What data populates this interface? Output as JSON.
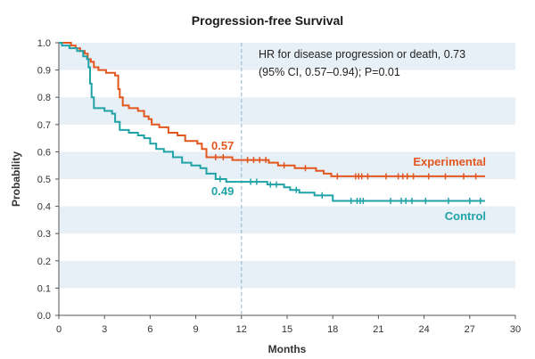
{
  "chart_data": {
    "type": "line",
    "title": "Progression-free Survival",
    "xlabel": "Months",
    "ylabel": "Probability",
    "xlim": [
      0,
      30
    ],
    "ylim": [
      0,
      1
    ],
    "x_ticks": [
      0,
      3,
      6,
      9,
      12,
      15,
      18,
      21,
      24,
      27,
      30
    ],
    "y_ticks": [
      "0.0",
      "0.1",
      "0.2",
      "0.3",
      "0.4",
      "0.5",
      "0.6",
      "0.7",
      "0.8",
      "0.9",
      "1.0"
    ],
    "reference_line_x": 12,
    "annotation": [
      "HR for disease progression or death, 0.73",
      "(95% CI, 0.57–0.94); P=0.01"
    ],
    "series": [
      {
        "name": "Experimental",
        "color": "#e2571f",
        "label_at_reference": "0.57",
        "points": [
          [
            0,
            1.0
          ],
          [
            0.8,
            0.99
          ],
          [
            1.1,
            0.98
          ],
          [
            1.4,
            0.97
          ],
          [
            1.7,
            0.96
          ],
          [
            1.9,
            0.94
          ],
          [
            2.1,
            0.93
          ],
          [
            2.3,
            0.91
          ],
          [
            2.6,
            0.9
          ],
          [
            3.1,
            0.89
          ],
          [
            3.7,
            0.88
          ],
          [
            3.9,
            0.83
          ],
          [
            4.0,
            0.8
          ],
          [
            4.2,
            0.77
          ],
          [
            4.6,
            0.76
          ],
          [
            5.2,
            0.75
          ],
          [
            5.6,
            0.73
          ],
          [
            5.9,
            0.72
          ],
          [
            6.1,
            0.7
          ],
          [
            6.6,
            0.69
          ],
          [
            7.2,
            0.67
          ],
          [
            7.8,
            0.66
          ],
          [
            8.3,
            0.64
          ],
          [
            9.1,
            0.63
          ],
          [
            9.4,
            0.61
          ],
          [
            9.7,
            0.58
          ],
          [
            11.4,
            0.57
          ],
          [
            13.8,
            0.56
          ],
          [
            14.4,
            0.55
          ],
          [
            15.5,
            0.54
          ],
          [
            16.9,
            0.53
          ],
          [
            17.4,
            0.52
          ],
          [
            17.9,
            0.51
          ],
          [
            28.0,
            0.51
          ]
        ],
        "censored": [
          10.3,
          10.8,
          12.4,
          12.8,
          13.2,
          13.6,
          14.8,
          16.2,
          18.3,
          19.5,
          19.7,
          19.9,
          20.3,
          21.5,
          22.3,
          22.6,
          22.9,
          23.3,
          24.3,
          25.4,
          26.6,
          27.4
        ]
      },
      {
        "name": "Control",
        "color": "#1fa3a6",
        "label_at_reference": "0.49",
        "points": [
          [
            0,
            1.0
          ],
          [
            0.2,
            0.99
          ],
          [
            0.7,
            0.98
          ],
          [
            1.2,
            0.97
          ],
          [
            1.6,
            0.95
          ],
          [
            1.85,
            0.94
          ],
          [
            1.95,
            0.91
          ],
          [
            2.05,
            0.85
          ],
          [
            2.15,
            0.8
          ],
          [
            2.3,
            0.76
          ],
          [
            3.0,
            0.75
          ],
          [
            3.5,
            0.74
          ],
          [
            3.7,
            0.71
          ],
          [
            4.0,
            0.68
          ],
          [
            4.6,
            0.67
          ],
          [
            5.2,
            0.66
          ],
          [
            5.6,
            0.65
          ],
          [
            6.0,
            0.63
          ],
          [
            6.4,
            0.61
          ],
          [
            6.9,
            0.6
          ],
          [
            7.5,
            0.58
          ],
          [
            8.1,
            0.56
          ],
          [
            8.7,
            0.55
          ],
          [
            9.3,
            0.54
          ],
          [
            9.7,
            0.52
          ],
          [
            10.3,
            0.5
          ],
          [
            11.0,
            0.49
          ],
          [
            13.7,
            0.48
          ],
          [
            14.8,
            0.47
          ],
          [
            15.2,
            0.46
          ],
          [
            15.8,
            0.45
          ],
          [
            16.8,
            0.44
          ],
          [
            18.0,
            0.42
          ],
          [
            28.0,
            0.42
          ]
        ],
        "censored": [
          10.6,
          12.6,
          13.0,
          13.9,
          14.3,
          15.6,
          17.3,
          19.2,
          19.6,
          19.8,
          20.0,
          21.8,
          22.5,
          22.8,
          23.2,
          24.1,
          25.6,
          27.0,
          27.7
        ]
      }
    ]
  }
}
